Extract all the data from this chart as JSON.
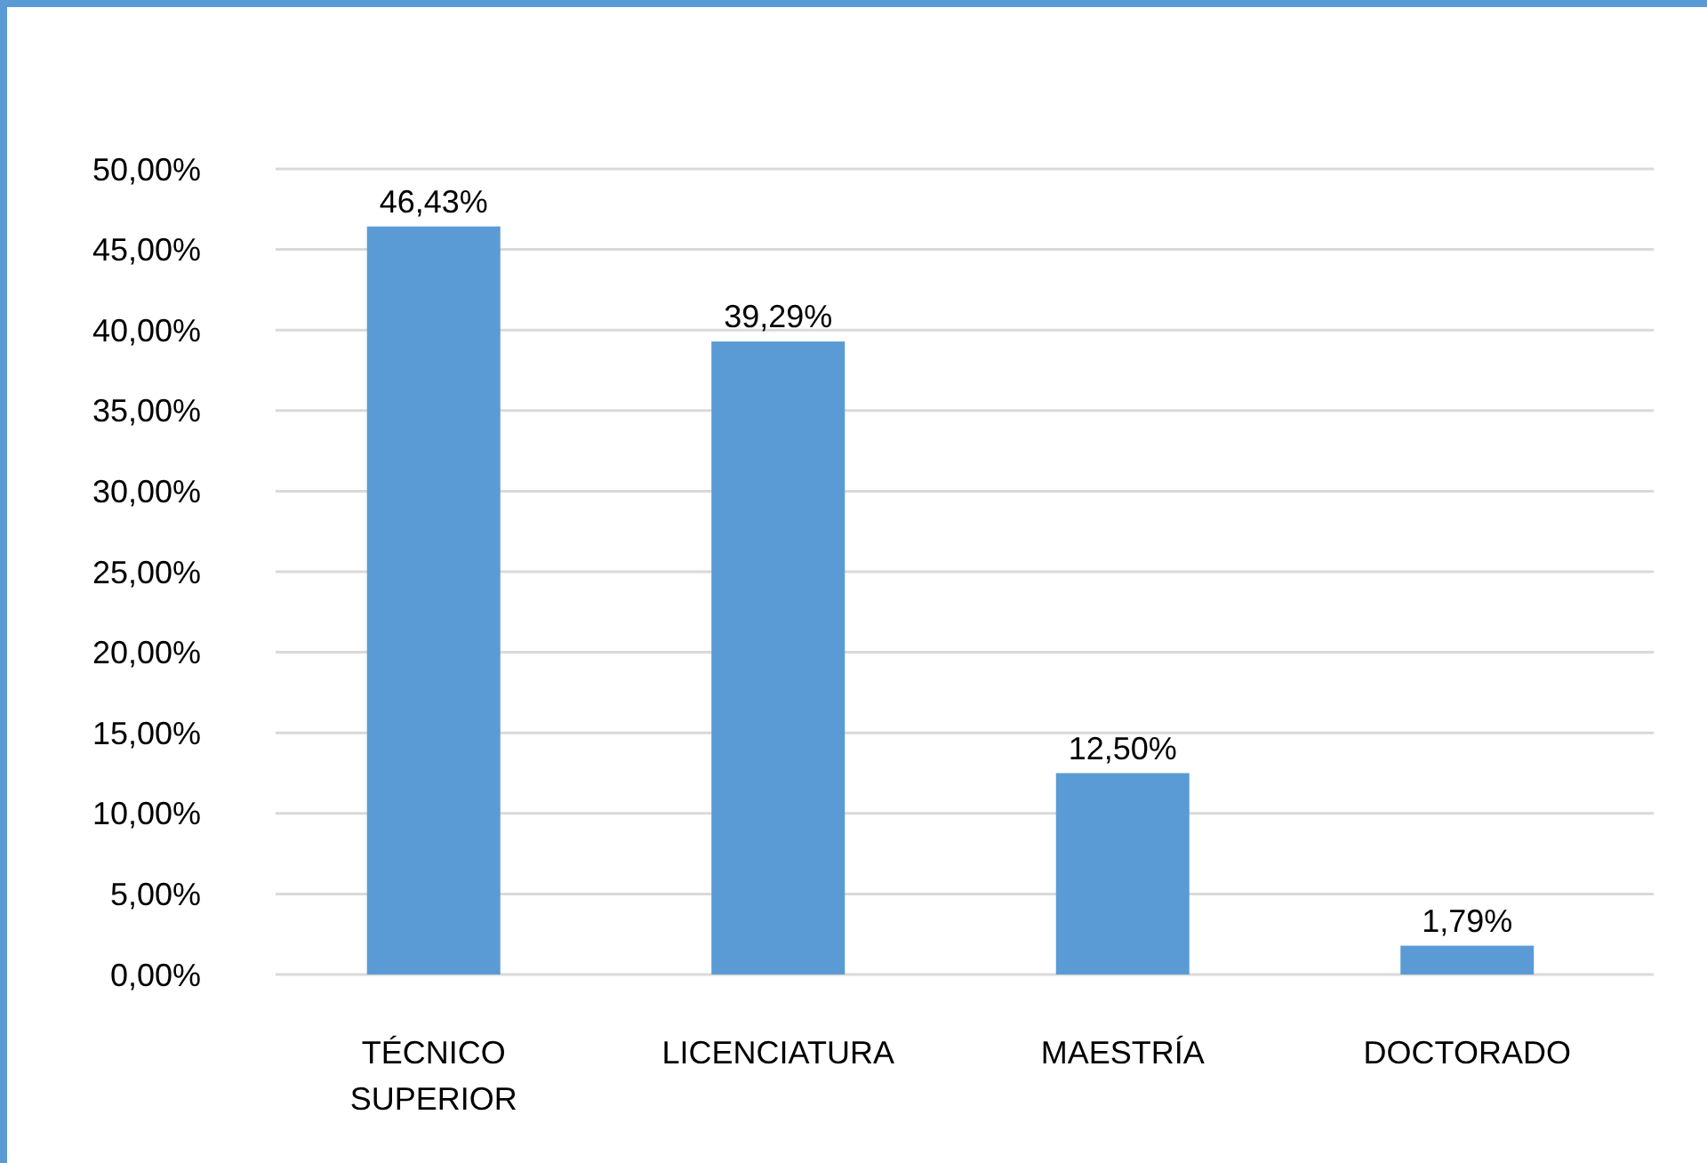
{
  "chart_data": {
    "type": "bar",
    "categories": [
      "TÉCNICO SUPERIOR",
      "LICENCIATURA",
      "MAESTRÍA",
      "DOCTORADO"
    ],
    "values": [
      46.43,
      39.29,
      12.5,
      1.79
    ],
    "value_labels": [
      "46,43%",
      "39,29%",
      "12,50%",
      "1,79%"
    ],
    "color": "#5b9bd5",
    "ylim": [
      0,
      50
    ],
    "yticks": [
      {
        "value": 0,
        "label": "0,00%"
      },
      {
        "value": 5,
        "label": "5,00%"
      },
      {
        "value": 10,
        "label": "10,00%"
      },
      {
        "value": 15,
        "label": "15,00%"
      },
      {
        "value": 20,
        "label": "20,00%"
      },
      {
        "value": 25,
        "label": "25,00%"
      },
      {
        "value": 30,
        "label": "30,00%"
      },
      {
        "value": 35,
        "label": "35,00%"
      },
      {
        "value": 40,
        "label": "40,00%"
      },
      {
        "value": 45,
        "label": "45,00%"
      },
      {
        "value": 50,
        "label": "50,00%"
      }
    ],
    "grid": "y"
  }
}
